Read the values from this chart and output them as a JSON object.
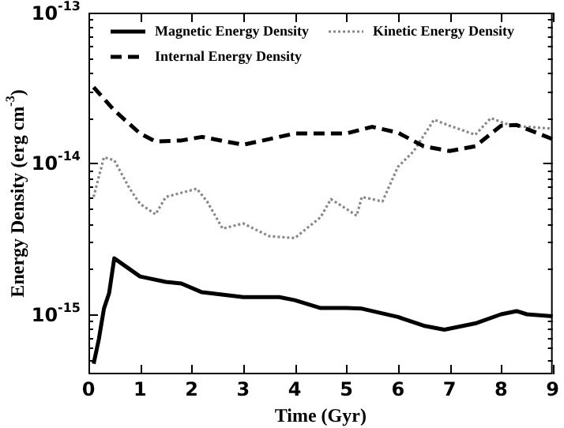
{
  "chart_data": {
    "type": "line",
    "xlabel": "Time (Gyr)",
    "ylabel": "Energy Density (erg cm$^{-3}$)",
    "log": "y",
    "grid": false,
    "legend": "top",
    "marker": "none",
    "xlim": [
      0,
      9
    ],
    "xticks": [
      0,
      1,
      2,
      3,
      4,
      5,
      6,
      7,
      8,
      9
    ],
    "ylim": [
      4e-16,
      1e-13
    ],
    "yticks": [
      {
        "value": 1e-15,
        "label": "10$^{-15}$"
      },
      {
        "value": 1e-14,
        "label": "10$^{-14}$"
      },
      {
        "value": 1e-13,
        "label": "10$^{-13}$"
      },
      {
        "value": 5e-16,
        "label": null
      },
      {
        "value": 6e-16,
        "label": null
      },
      {
        "value": 7e-16,
        "label": null
      },
      {
        "value": 8e-16,
        "label": null
      },
      {
        "value": 9e-16,
        "label": null
      },
      {
        "value": 2e-15,
        "label": null
      },
      {
        "value": 3e-15,
        "label": null
      },
      {
        "value": 4e-15,
        "label": null
      },
      {
        "value": 5e-15,
        "label": null
      },
      {
        "value": 6e-15,
        "label": null
      },
      {
        "value": 7e-15,
        "label": null
      },
      {
        "value": 8e-15,
        "label": null
      },
      {
        "value": 9e-15,
        "label": null
      },
      {
        "value": 2e-14,
        "label": null
      },
      {
        "value": 3e-14,
        "label": null
      },
      {
        "value": 4e-14,
        "label": null
      },
      {
        "value": 5e-14,
        "label": null
      },
      {
        "value": 6e-14,
        "label": null
      },
      {
        "value": 7e-14,
        "label": null
      },
      {
        "value": 8e-14,
        "label": null
      },
      {
        "value": 9e-14,
        "label": null
      }
    ],
    "series": [
      {
        "name": "Magnetic Energy Density",
        "color": "#000000",
        "line_style": "solid",
        "x": [
          0.1,
          0.2,
          0.3,
          0.4,
          0.5,
          1.0,
          1.5,
          1.8,
          2.2,
          3.0,
          3.7,
          4.0,
          4.5,
          5.0,
          5.3,
          6.0,
          6.5,
          6.9,
          7.5,
          8.0,
          8.3,
          8.5,
          9.0
        ],
        "values": [
          4.7e-16,
          6.8e-16,
          1.09e-15,
          1.38e-15,
          2.35e-15,
          1.78e-15,
          1.64e-15,
          1.6e-15,
          1.4e-15,
          1.3e-15,
          1.3e-15,
          1.24e-15,
          1.1e-15,
          1.1e-15,
          1.09e-15,
          9.6e-16,
          8.4e-16,
          7.9e-16,
          8.7e-16,
          1e-15,
          1.05e-15,
          1e-15,
          9.7e-16
        ]
      },
      {
        "name": "Internal Energy Density",
        "color": "#000000",
        "line_style": "dashed",
        "x": [
          0.1,
          0.5,
          1.0,
          1.3,
          1.8,
          2.2,
          3.0,
          4.0,
          5.0,
          5.5,
          6.0,
          6.5,
          7.0,
          7.5,
          8.0,
          8.3,
          9.0
        ],
        "values": [
          3.2e-14,
          2.25e-14,
          1.58e-14,
          1.4e-14,
          1.42e-14,
          1.5e-14,
          1.33e-14,
          1.58e-14,
          1.58e-14,
          1.75e-14,
          1.6e-14,
          1.3e-14,
          1.21e-14,
          1.3e-14,
          1.78e-14,
          1.8e-14,
          1.45e-14
        ]
      },
      {
        "name": "Kinetic Energy Density",
        "color": "#888888",
        "line_style": "dotted",
        "x": [
          0.1,
          0.3,
          0.5,
          0.8,
          1.0,
          1.3,
          1.5,
          2.1,
          2.3,
          2.6,
          3.0,
          3.5,
          4.0,
          4.5,
          4.7,
          5.0,
          5.2,
          5.3,
          5.7,
          6.0,
          6.3,
          6.7,
          7.0,
          7.5,
          7.8,
          8.2,
          9.0
        ],
        "values": [
          6e-15,
          1.1e-14,
          1.05e-14,
          6.8e-15,
          5.4e-15,
          4.6e-15,
          6e-15,
          6.8e-15,
          5.6e-15,
          3.7e-15,
          4e-15,
          3.3e-15,
          3.2e-15,
          4.4e-15,
          5.8e-15,
          5e-15,
          4.5e-15,
          6e-15,
          5.6e-15,
          9.5e-15,
          1.2e-14,
          1.95e-14,
          1.78e-14,
          1.55e-14,
          2e-14,
          1.78e-14,
          1.7e-14
        ]
      }
    ]
  }
}
